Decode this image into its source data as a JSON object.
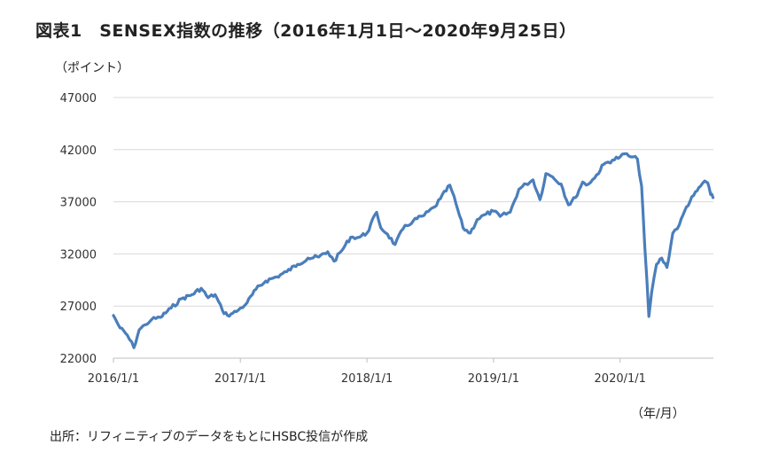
{
  "title": "図表1　SENSEX指数の推移（2016年1月1日～2020年9月25日）",
  "source": "出所：リフィニティブのデータをもとにHSBC投信が作成",
  "colors": {
    "line": "#4a7ebb",
    "grid": "#d9d9d9",
    "axis": "#bfbfbf"
  },
  "chart_data": {
    "type": "line",
    "title": "図表1　SENSEX指数の推移（2016年1月1日～2020年9月25日）",
    "ylabel": "（ポイント）",
    "xlabel": "（年/月）",
    "ylim": [
      22000,
      47000
    ],
    "yticks": [
      22000,
      27000,
      32000,
      37000,
      42000,
      47000
    ],
    "xticks": [
      "2016/1/1",
      "2017/1/1",
      "2018/1/1",
      "2019/1/1",
      "2020/1/1"
    ],
    "grid": true,
    "series": [
      {
        "x": [
          "2016/1/1",
          "2016/1/20",
          "2016/2/10",
          "2016/2/29",
          "2016/3/15",
          "2016/4/1",
          "2016/4/20",
          "2016/5/15",
          "2016/6/15",
          "2016/7/15",
          "2016/8/15",
          "2016/9/10",
          "2016/9/30",
          "2016/10/20",
          "2016/11/10",
          "2016/11/25",
          "2016/12/10",
          "2016/12/26",
          "2017/1/20",
          "2017/2/15",
          "2017/3/15",
          "2017/4/15",
          "2017/5/15",
          "2017/6/15",
          "2017/7/15",
          "2017/8/15",
          "2017/9/10",
          "2017/9/28",
          "2017/10/20",
          "2017/11/15",
          "2017/12/10",
          "2018/1/1",
          "2018/1/29",
          "2018/2/10",
          "2018/3/1",
          "2018/3/23",
          "2018/4/15",
          "2018/5/15",
          "2018/6/15",
          "2018/7/15",
          "2018/8/1",
          "2018/8/28",
          "2018/9/15",
          "2018/10/5",
          "2018/10/26",
          "2018/11/15",
          "2018/12/10",
          "2019/1/1",
          "2019/1/20",
          "2019/2/18",
          "2019/3/15",
          "2019/4/5",
          "2019/4/25",
          "2019/5/15",
          "2019/6/1",
          "2019/6/20",
          "2019/7/15",
          "2019/8/5",
          "2019/8/25",
          "2019/9/15",
          "2019/9/25",
          "2019/10/20",
          "2019/11/15",
          "2019/12/10",
          "2020/1/1",
          "2020/1/14",
          "2020/2/1",
          "2020/2/20",
          "2020/3/3",
          "2020/3/12",
          "2020/3/24",
          "2020/4/1",
          "2020/4/15",
          "2020/4/30",
          "2020/5/15",
          "2020/6/1",
          "2020/6/20",
          "2020/7/10",
          "2020/7/31",
          "2020/8/20",
          "2020/9/1",
          "2020/9/10",
          "2020/9/18",
          "2020/9/25"
        ],
        "values": [
          26100,
          24900,
          24200,
          23000,
          24700,
          25200,
          25700,
          25900,
          26800,
          27700,
          28100,
          28700,
          27800,
          28100,
          26600,
          26100,
          26300,
          26600,
          27300,
          28600,
          29400,
          29800,
          30300,
          31000,
          31600,
          31700,
          32200,
          31300,
          32300,
          33600,
          33600,
          34000,
          36000,
          34500,
          33900,
          32900,
          34400,
          35200,
          35700,
          36500,
          37300,
          38600,
          36800,
          34500,
          34000,
          35300,
          35800,
          36100,
          35600,
          36000,
          38200,
          38700,
          39100,
          37200,
          39700,
          39400,
          38700,
          36700,
          37400,
          38900,
          38600,
          39300,
          40600,
          41000,
          41300,
          41600,
          41300,
          41100,
          38500,
          32800,
          26000,
          28300,
          31000,
          31600,
          30700,
          34000,
          34800,
          36500,
          37600,
          38500,
          39000,
          38800,
          37700,
          37400
        ]
      }
    ]
  }
}
